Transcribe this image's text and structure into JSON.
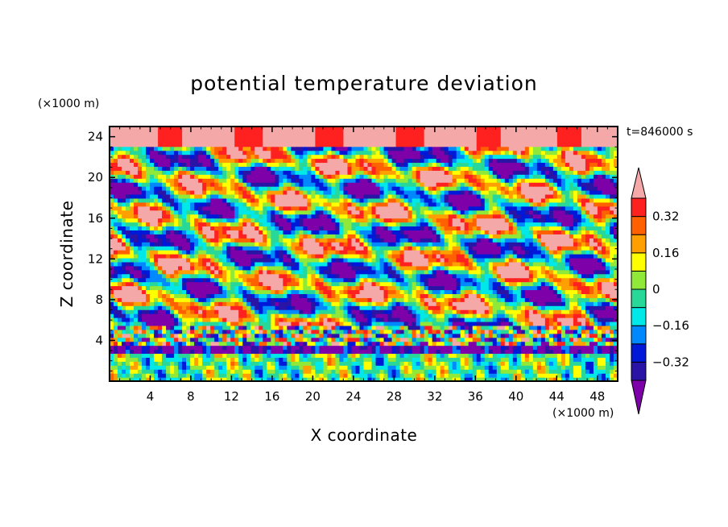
{
  "chart_data": {
    "type": "heatmap",
    "title": "potential temperature deviation",
    "xlabel": "X coordinate",
    "ylabel": "Z coordinate",
    "x_unit": "(×1000 m)",
    "y_unit": "(×1000 m)",
    "time_label": "t=846000 s",
    "xlim": [
      0,
      50
    ],
    "ylim": [
      0,
      25
    ],
    "x_ticks": [
      4,
      8,
      12,
      16,
      20,
      24,
      28,
      32,
      36,
      40,
      44,
      48
    ],
    "y_ticks": [
      4,
      8,
      12,
      16,
      20,
      24
    ],
    "x_tick_labels": [
      "4",
      "8",
      "12",
      "16",
      "20",
      "24",
      "28",
      "32",
      "36",
      "40",
      "44",
      "48"
    ],
    "y_tick_labels": [
      "4",
      "8",
      "12",
      "16",
      "20",
      "24"
    ],
    "colorbar": {
      "levels": [
        -0.4,
        -0.32,
        -0.24,
        -0.16,
        -0.08,
        0,
        0.08,
        0.16,
        0.24,
        0.32,
        0.4
      ],
      "colors": [
        "#7e00a8",
        "#2a14a6",
        "#0018d8",
        "#0088ff",
        "#00e8e8",
        "#28d898",
        "#90e838",
        "#ffff00",
        "#ffa000",
        "#ff6000",
        "#ff2020",
        "#f4a8a8"
      ],
      "tick_values": [
        0.32,
        0.16,
        0,
        -0.16,
        -0.32
      ],
      "tick_labels": [
        "0.32",
        "0.16",
        "0",
        "−0.16",
        "−0.32"
      ]
    }
  }
}
